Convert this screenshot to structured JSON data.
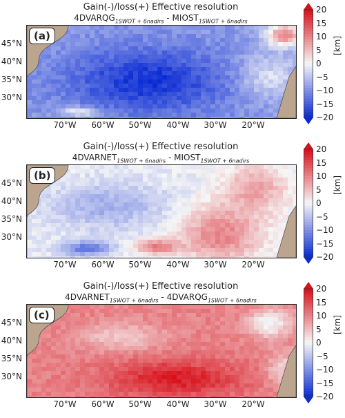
{
  "colors": {
    "land": "#bca58f",
    "neg": "#0a2bd4",
    "pos": "#d8101a",
    "zero": "#f6f6f6"
  },
  "colorbar": {
    "ticks": [
      "20",
      "15",
      "10",
      "5",
      "0",
      "−5",
      "−10",
      "−15",
      "−20"
    ],
    "unit": "[km]"
  },
  "axes": {
    "lat_ticks": [
      "45°N",
      "40°N",
      "35°N",
      "30°N"
    ],
    "lon_ticks": [
      "70°W",
      "60°W",
      "50°W",
      "40°W",
      "30°W",
      "20°W"
    ]
  },
  "panels": [
    {
      "label": "(a)",
      "title": "Gain(-)/loss(+) Effective resolution",
      "sub_a": "4DVARQG",
      "sub_a_idx": "1SWOT + 6nadirs",
      "sub_b": "MIOST",
      "sub_b_idx": "1SWOT + 6nadirs",
      "pattern": "a"
    },
    {
      "label": "(b)",
      "title": "Gain(-)/loss(+) Effective resolution",
      "sub_a": "4DVARNET",
      "sub_a_idx": "1SWOT + 6nadirs",
      "sub_b": "MIOST",
      "sub_b_idx": "1SWOT + 6nadirs",
      "pattern": "b"
    },
    {
      "label": "(c)",
      "title": "Gain(-)/loss(+) Effective resolution",
      "sub_a": "4DVARNET",
      "sub_a_idx": "1SWOT + 6nadirs",
      "sub_b": "4DVARQG",
      "sub_b_idx": "1SWOT + 6nadirs",
      "pattern": "c"
    }
  ]
}
